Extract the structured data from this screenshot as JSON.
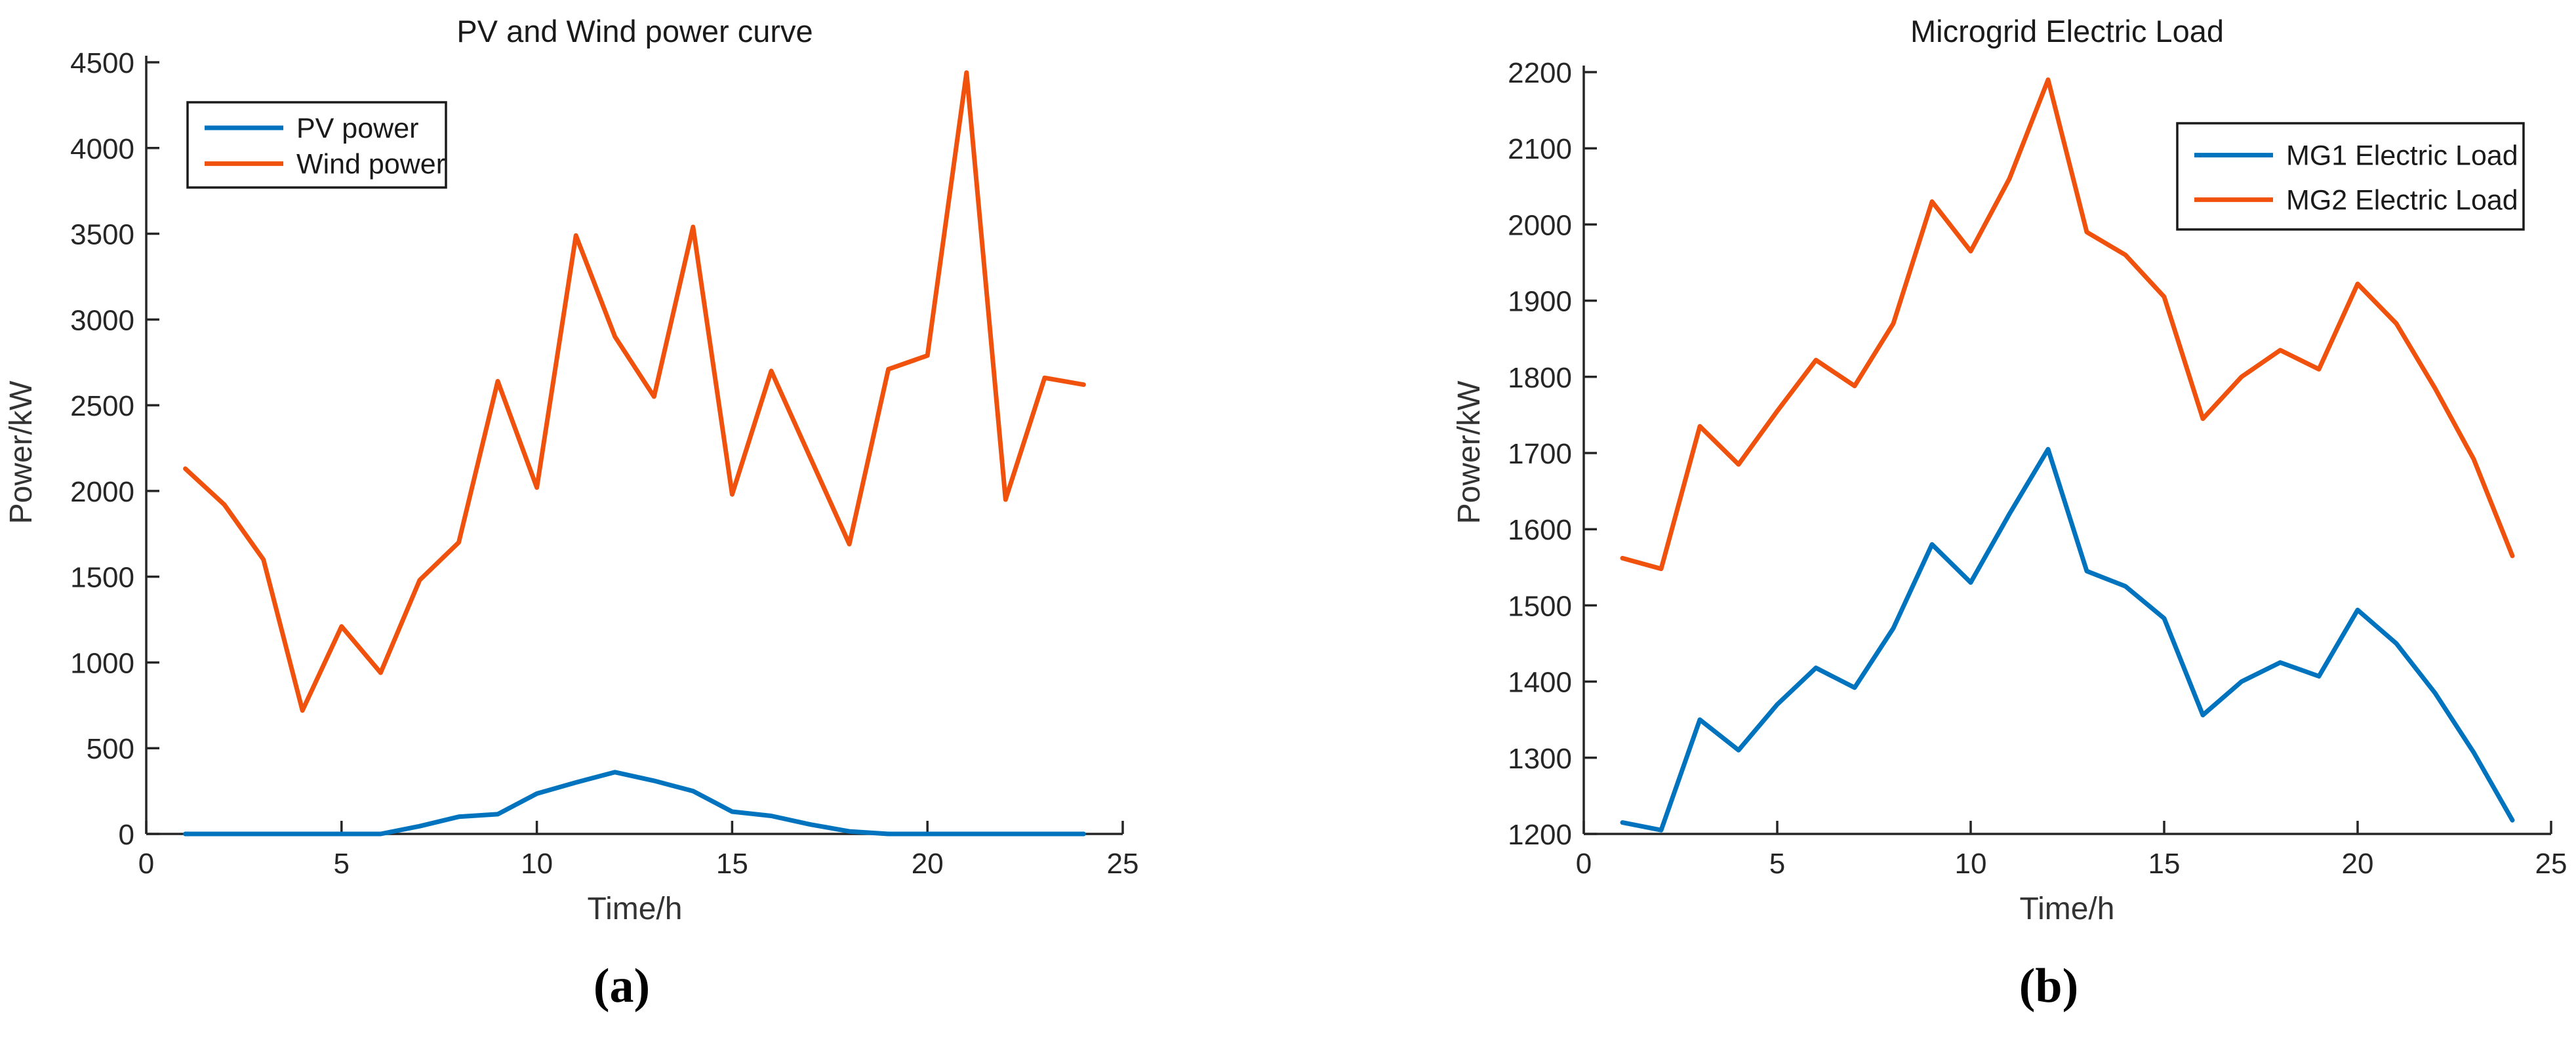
{
  "figure": {
    "background": "#FFFFFF"
  },
  "captions": [
    "(a)",
    "(b)"
  ],
  "colors": {
    "axis": "#262626",
    "tick_text": "#262626",
    "legend_border": "#1a1a1a"
  },
  "chart_data": [
    {
      "type": "line",
      "title": "PV and Wind power curve",
      "xlabel": "Time/h",
      "ylabel": "Power/kW",
      "grid": false,
      "legend_position": "top-left",
      "xlim": [
        0,
        25
      ],
      "ylim": [
        0,
        4500
      ],
      "xticks": [
        0,
        5,
        10,
        15,
        20,
        25
      ],
      "yticks": [
        0,
        500,
        1000,
        1500,
        2000,
        2500,
        3000,
        3500,
        4000,
        4500
      ],
      "x": [
        1,
        2,
        3,
        4,
        5,
        6,
        7,
        8,
        9,
        10,
        11,
        12,
        13,
        14,
        15,
        16,
        17,
        18,
        19,
        20,
        21,
        22,
        23,
        24
      ],
      "series": [
        {
          "name": "PV power",
          "color": "#0073BE",
          "values": [
            0,
            0,
            0,
            0,
            0,
            0,
            45,
            100,
            115,
            235,
            300,
            360,
            310,
            250,
            130,
            105,
            55,
            15,
            0,
            0,
            0,
            0,
            0,
            0
          ]
        },
        {
          "name": "Wind power",
          "color": "#F0520E",
          "values": [
            2130,
            1920,
            1600,
            720,
            1210,
            940,
            1480,
            1700,
            2640,
            2020,
            3490,
            2900,
            2550,
            3540,
            1980,
            2700,
            2195,
            1690,
            2710,
            2790,
            4440,
            1950,
            2660,
            2620
          ]
        }
      ]
    },
    {
      "type": "line",
      "title": "Microgrid Electric Load",
      "xlabel": "Time/h",
      "ylabel": "Power/kW",
      "grid": false,
      "legend_position": "top-right",
      "xlim": [
        0,
        25
      ],
      "ylim": [
        1200,
        2200
      ],
      "xticks": [
        0,
        5,
        10,
        15,
        20,
        25
      ],
      "yticks": [
        1200,
        1300,
        1400,
        1500,
        1600,
        1700,
        1800,
        1900,
        2000,
        2100,
        2200
      ],
      "x": [
        1,
        2,
        3,
        4,
        5,
        6,
        7,
        8,
        9,
        10,
        11,
        12,
        13,
        14,
        15,
        16,
        17,
        18,
        19,
        20,
        21,
        22,
        23,
        24
      ],
      "series": [
        {
          "name": "MG1 Electric Load",
          "color": "#0073BE",
          "values": [
            1215,
            1205,
            1350,
            1310,
            1370,
            1418,
            1392,
            1470,
            1580,
            1530,
            1620,
            1705,
            1545,
            1525,
            1483,
            1356,
            1400,
            1425,
            1407,
            1494,
            1450,
            1385,
            1307,
            1218
          ]
        },
        {
          "name": "MG2 Electric Load",
          "color": "#F0520E",
          "values": [
            1562,
            1548,
            1735,
            1685,
            1755,
            1822,
            1788,
            1870,
            2030,
            1965,
            2060,
            2190,
            1990,
            1960,
            1905,
            1745,
            1800,
            1835,
            1810,
            1922,
            1870,
            1785,
            1692,
            1565
          ]
        }
      ]
    }
  ]
}
